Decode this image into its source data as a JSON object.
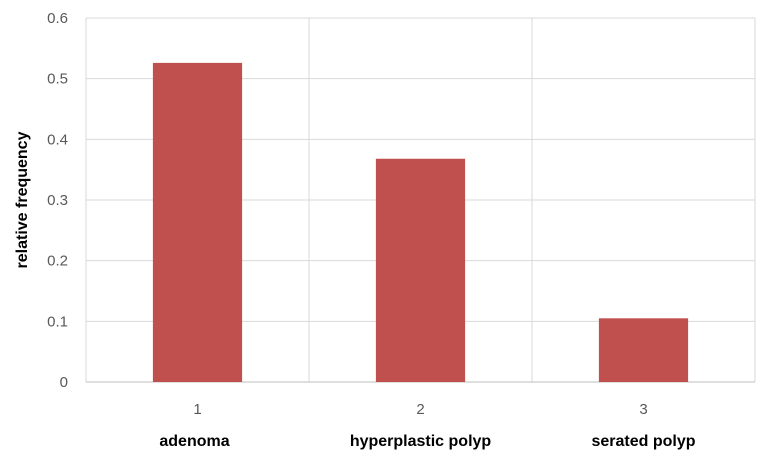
{
  "chart_data": {
    "type": "bar",
    "x": [
      "1",
      "2",
      "3"
    ],
    "categories": [
      "adenoma",
      "hyperplastic polyp",
      "serated polyp"
    ],
    "values": [
      0.526,
      0.368,
      0.105
    ],
    "ylabel": "relative frequency",
    "xlabel": "",
    "title": "",
    "ylim": [
      0,
      0.6
    ],
    "yticks": [
      "0",
      "0.1",
      "0.2",
      "0.3",
      "0.4",
      "0.5",
      "0.6"
    ],
    "grid": "on",
    "legend": "none",
    "bar_color": "#c0504d",
    "grid_color": "#d9d9d9"
  }
}
